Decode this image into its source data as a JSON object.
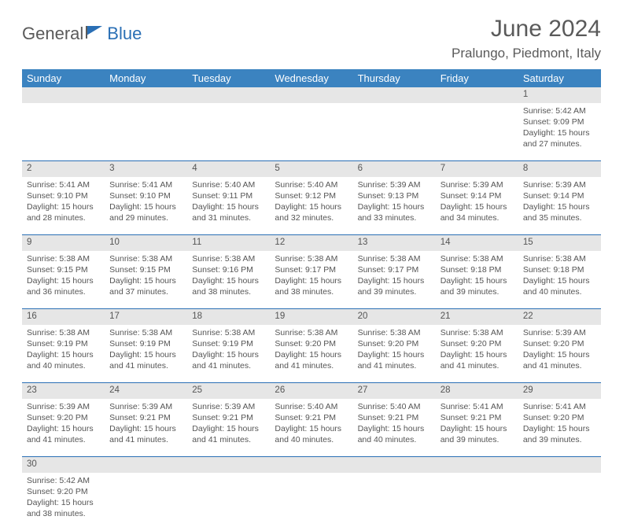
{
  "brand": {
    "name_part1": "General",
    "name_part2": "Blue",
    "text_color": "#5a5a5a",
    "accent_color": "#2a6fb5"
  },
  "header": {
    "title": "June 2024",
    "location": "Pralungo, Piedmont, Italy"
  },
  "colors": {
    "header_bg": "#3b83c0",
    "header_fg": "#ffffff",
    "daynum_bg": "#e6e6e6",
    "border": "#2a6fb5",
    "text": "#555555"
  },
  "weekdays": [
    "Sunday",
    "Monday",
    "Tuesday",
    "Wednesday",
    "Thursday",
    "Friday",
    "Saturday"
  ],
  "weeks": [
    {
      "daynums": [
        "",
        "",
        "",
        "",
        "",
        "",
        "1"
      ],
      "cells": [
        null,
        null,
        null,
        null,
        null,
        null,
        {
          "sunrise": "Sunrise: 5:42 AM",
          "sunset": "Sunset: 9:09 PM",
          "dl1": "Daylight: 15 hours",
          "dl2": "and 27 minutes."
        }
      ]
    },
    {
      "daynums": [
        "2",
        "3",
        "4",
        "5",
        "6",
        "7",
        "8"
      ],
      "cells": [
        {
          "sunrise": "Sunrise: 5:41 AM",
          "sunset": "Sunset: 9:10 PM",
          "dl1": "Daylight: 15 hours",
          "dl2": "and 28 minutes."
        },
        {
          "sunrise": "Sunrise: 5:41 AM",
          "sunset": "Sunset: 9:10 PM",
          "dl1": "Daylight: 15 hours",
          "dl2": "and 29 minutes."
        },
        {
          "sunrise": "Sunrise: 5:40 AM",
          "sunset": "Sunset: 9:11 PM",
          "dl1": "Daylight: 15 hours",
          "dl2": "and 31 minutes."
        },
        {
          "sunrise": "Sunrise: 5:40 AM",
          "sunset": "Sunset: 9:12 PM",
          "dl1": "Daylight: 15 hours",
          "dl2": "and 32 minutes."
        },
        {
          "sunrise": "Sunrise: 5:39 AM",
          "sunset": "Sunset: 9:13 PM",
          "dl1": "Daylight: 15 hours",
          "dl2": "and 33 minutes."
        },
        {
          "sunrise": "Sunrise: 5:39 AM",
          "sunset": "Sunset: 9:14 PM",
          "dl1": "Daylight: 15 hours",
          "dl2": "and 34 minutes."
        },
        {
          "sunrise": "Sunrise: 5:39 AM",
          "sunset": "Sunset: 9:14 PM",
          "dl1": "Daylight: 15 hours",
          "dl2": "and 35 minutes."
        }
      ]
    },
    {
      "daynums": [
        "9",
        "10",
        "11",
        "12",
        "13",
        "14",
        "15"
      ],
      "cells": [
        {
          "sunrise": "Sunrise: 5:38 AM",
          "sunset": "Sunset: 9:15 PM",
          "dl1": "Daylight: 15 hours",
          "dl2": "and 36 minutes."
        },
        {
          "sunrise": "Sunrise: 5:38 AM",
          "sunset": "Sunset: 9:15 PM",
          "dl1": "Daylight: 15 hours",
          "dl2": "and 37 minutes."
        },
        {
          "sunrise": "Sunrise: 5:38 AM",
          "sunset": "Sunset: 9:16 PM",
          "dl1": "Daylight: 15 hours",
          "dl2": "and 38 minutes."
        },
        {
          "sunrise": "Sunrise: 5:38 AM",
          "sunset": "Sunset: 9:17 PM",
          "dl1": "Daylight: 15 hours",
          "dl2": "and 38 minutes."
        },
        {
          "sunrise": "Sunrise: 5:38 AM",
          "sunset": "Sunset: 9:17 PM",
          "dl1": "Daylight: 15 hours",
          "dl2": "and 39 minutes."
        },
        {
          "sunrise": "Sunrise: 5:38 AM",
          "sunset": "Sunset: 9:18 PM",
          "dl1": "Daylight: 15 hours",
          "dl2": "and 39 minutes."
        },
        {
          "sunrise": "Sunrise: 5:38 AM",
          "sunset": "Sunset: 9:18 PM",
          "dl1": "Daylight: 15 hours",
          "dl2": "and 40 minutes."
        }
      ]
    },
    {
      "daynums": [
        "16",
        "17",
        "18",
        "19",
        "20",
        "21",
        "22"
      ],
      "cells": [
        {
          "sunrise": "Sunrise: 5:38 AM",
          "sunset": "Sunset: 9:19 PM",
          "dl1": "Daylight: 15 hours",
          "dl2": "and 40 minutes."
        },
        {
          "sunrise": "Sunrise: 5:38 AM",
          "sunset": "Sunset: 9:19 PM",
          "dl1": "Daylight: 15 hours",
          "dl2": "and 41 minutes."
        },
        {
          "sunrise": "Sunrise: 5:38 AM",
          "sunset": "Sunset: 9:19 PM",
          "dl1": "Daylight: 15 hours",
          "dl2": "and 41 minutes."
        },
        {
          "sunrise": "Sunrise: 5:38 AM",
          "sunset": "Sunset: 9:20 PM",
          "dl1": "Daylight: 15 hours",
          "dl2": "and 41 minutes."
        },
        {
          "sunrise": "Sunrise: 5:38 AM",
          "sunset": "Sunset: 9:20 PM",
          "dl1": "Daylight: 15 hours",
          "dl2": "and 41 minutes."
        },
        {
          "sunrise": "Sunrise: 5:38 AM",
          "sunset": "Sunset: 9:20 PM",
          "dl1": "Daylight: 15 hours",
          "dl2": "and 41 minutes."
        },
        {
          "sunrise": "Sunrise: 5:39 AM",
          "sunset": "Sunset: 9:20 PM",
          "dl1": "Daylight: 15 hours",
          "dl2": "and 41 minutes."
        }
      ]
    },
    {
      "daynums": [
        "23",
        "24",
        "25",
        "26",
        "27",
        "28",
        "29"
      ],
      "cells": [
        {
          "sunrise": "Sunrise: 5:39 AM",
          "sunset": "Sunset: 9:20 PM",
          "dl1": "Daylight: 15 hours",
          "dl2": "and 41 minutes."
        },
        {
          "sunrise": "Sunrise: 5:39 AM",
          "sunset": "Sunset: 9:21 PM",
          "dl1": "Daylight: 15 hours",
          "dl2": "and 41 minutes."
        },
        {
          "sunrise": "Sunrise: 5:39 AM",
          "sunset": "Sunset: 9:21 PM",
          "dl1": "Daylight: 15 hours",
          "dl2": "and 41 minutes."
        },
        {
          "sunrise": "Sunrise: 5:40 AM",
          "sunset": "Sunset: 9:21 PM",
          "dl1": "Daylight: 15 hours",
          "dl2": "and 40 minutes."
        },
        {
          "sunrise": "Sunrise: 5:40 AM",
          "sunset": "Sunset: 9:21 PM",
          "dl1": "Daylight: 15 hours",
          "dl2": "and 40 minutes."
        },
        {
          "sunrise": "Sunrise: 5:41 AM",
          "sunset": "Sunset: 9:21 PM",
          "dl1": "Daylight: 15 hours",
          "dl2": "and 39 minutes."
        },
        {
          "sunrise": "Sunrise: 5:41 AM",
          "sunset": "Sunset: 9:20 PM",
          "dl1": "Daylight: 15 hours",
          "dl2": "and 39 minutes."
        }
      ]
    },
    {
      "daynums": [
        "30",
        "",
        "",
        "",
        "",
        "",
        ""
      ],
      "cells": [
        {
          "sunrise": "Sunrise: 5:42 AM",
          "sunset": "Sunset: 9:20 PM",
          "dl1": "Daylight: 15 hours",
          "dl2": "and 38 minutes."
        },
        null,
        null,
        null,
        null,
        null,
        null
      ]
    }
  ]
}
